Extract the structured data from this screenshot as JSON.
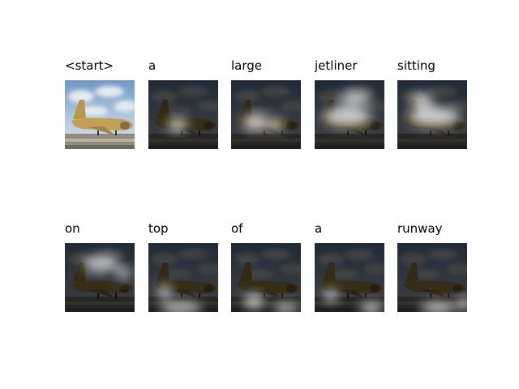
{
  "panels": [
    {
      "word": "<start>"
    },
    {
      "word": "a"
    },
    {
      "word": "large"
    },
    {
      "word": "jetliner"
    },
    {
      "word": "sitting"
    },
    {
      "word": "on"
    },
    {
      "word": "top"
    },
    {
      "word": "of"
    },
    {
      "word": "a"
    },
    {
      "word": "runway"
    }
  ]
}
